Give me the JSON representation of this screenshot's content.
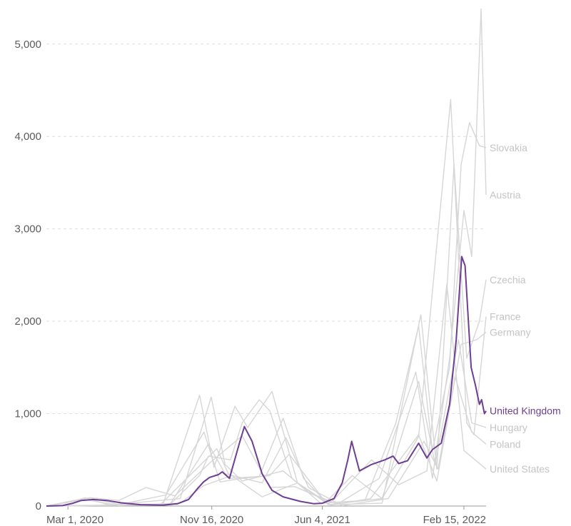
{
  "chart_data": {
    "type": "line",
    "title": "",
    "xlabel": "",
    "ylabel": "",
    "ylim": [
      0,
      5400
    ],
    "grid": true,
    "x_ticks": [
      "Mar 1, 2020",
      "Nov 16, 2020",
      "Jun 4, 2021",
      "Feb 15, 2022"
    ],
    "y_ticks": [
      0,
      1000,
      2000,
      3000,
      4000,
      5000
    ],
    "y_tick_labels": [
      "0",
      "1,000",
      "2,000",
      "3,000",
      "4,000",
      "5,000"
    ],
    "xlim": [
      "2020-01-22",
      "2022-03-27"
    ],
    "colors": {
      "highlight": "#6d3e91",
      "background": "#d6d6d6",
      "background_label": "#c4c4c4",
      "tick_text": "#5b5b5b",
      "grid": "#dddddd"
    },
    "series": [
      {
        "name": "United Kingdom",
        "highlight": true,
        "points": [
          [
            "2020-01-22",
            0
          ],
          [
            "2020-02-20",
            5
          ],
          [
            "2020-03-10",
            30
          ],
          [
            "2020-03-25",
            60
          ],
          [
            "2020-04-15",
            70
          ],
          [
            "2020-05-10",
            60
          ],
          [
            "2020-06-05",
            35
          ],
          [
            "2020-07-10",
            15
          ],
          [
            "2020-08-20",
            10
          ],
          [
            "2020-09-15",
            25
          ],
          [
            "2020-10-05",
            70
          ],
          [
            "2020-10-20",
            180
          ],
          [
            "2020-11-01",
            260
          ],
          [
            "2020-11-12",
            310
          ],
          [
            "2020-11-28",
            340
          ],
          [
            "2020-12-05",
            370
          ],
          [
            "2020-12-18",
            300
          ],
          [
            "2021-01-05",
            680
          ],
          [
            "2021-01-14",
            860
          ],
          [
            "2021-01-28",
            700
          ],
          [
            "2021-02-15",
            350
          ],
          [
            "2021-03-05",
            170
          ],
          [
            "2021-03-25",
            100
          ],
          [
            "2021-04-25",
            50
          ],
          [
            "2021-05-20",
            25
          ],
          [
            "2021-06-04",
            30
          ],
          [
            "2021-06-25",
            80
          ],
          [
            "2021-07-10",
            250
          ],
          [
            "2021-07-20",
            500
          ],
          [
            "2021-07-27",
            700
          ],
          [
            "2021-08-10",
            380
          ],
          [
            "2021-09-01",
            450
          ],
          [
            "2021-09-25",
            500
          ],
          [
            "2021-10-10",
            540
          ],
          [
            "2021-10-20",
            460
          ],
          [
            "2021-11-05",
            490
          ],
          [
            "2021-11-25",
            680
          ],
          [
            "2021-12-10",
            520
          ],
          [
            "2021-12-20",
            610
          ],
          [
            "2022-01-05",
            680
          ],
          [
            "2022-01-20",
            1100
          ],
          [
            "2022-02-01",
            1800
          ],
          [
            "2022-02-11",
            2700
          ],
          [
            "2022-02-17",
            2600
          ],
          [
            "2022-02-28",
            1500
          ],
          [
            "2022-03-08",
            1300
          ],
          [
            "2022-03-15",
            1100
          ],
          [
            "2022-03-19",
            1150
          ],
          [
            "2022-03-24",
            1000
          ],
          [
            "2022-03-27",
            1030
          ]
        ]
      },
      {
        "name": "Slovakia",
        "points": [
          [
            "2020-01-22",
            0
          ],
          [
            "2020-09-01",
            15
          ],
          [
            "2020-10-25",
            330
          ],
          [
            "2020-11-10",
            540
          ],
          [
            "2020-12-20",
            500
          ],
          [
            "2021-01-10",
            900
          ],
          [
            "2021-02-10",
            1150
          ],
          [
            "2021-03-01",
            1030
          ],
          [
            "2021-04-10",
            300
          ],
          [
            "2021-06-01",
            30
          ],
          [
            "2021-08-20",
            60
          ],
          [
            "2021-10-15",
            900
          ],
          [
            "2021-11-25",
            1950
          ],
          [
            "2021-12-20",
            600
          ],
          [
            "2022-01-20",
            1500
          ],
          [
            "2022-02-10",
            3700
          ],
          [
            "2022-02-25",
            4150
          ],
          [
            "2022-03-15",
            3900
          ],
          [
            "2022-03-27",
            3880
          ]
        ]
      },
      {
        "name": "Austria",
        "points": [
          [
            "2020-01-22",
            0
          ],
          [
            "2020-03-10",
            50
          ],
          [
            "2020-04-01",
            90
          ],
          [
            "2020-05-15",
            10
          ],
          [
            "2020-09-20",
            80
          ],
          [
            "2020-11-15",
            1180
          ],
          [
            "2020-12-10",
            450
          ],
          [
            "2021-01-10",
            270
          ],
          [
            "2021-03-25",
            380
          ],
          [
            "2021-05-10",
            150
          ],
          [
            "2021-07-01",
            20
          ],
          [
            "2021-09-15",
            300
          ],
          [
            "2021-11-20",
            1450
          ],
          [
            "2021-12-20",
            300
          ],
          [
            "2022-01-20",
            1600
          ],
          [
            "2022-02-15",
            3200
          ],
          [
            "2022-03-01",
            2700
          ],
          [
            "2022-03-18",
            5380
          ],
          [
            "2022-03-27",
            3370
          ]
        ]
      },
      {
        "name": "Czechia",
        "points": [
          [
            "2020-01-22",
            0
          ],
          [
            "2020-08-20",
            20
          ],
          [
            "2020-10-25",
            1200
          ],
          [
            "2020-11-20",
            420
          ],
          [
            "2020-12-28",
            1080
          ],
          [
            "2021-01-20",
            850
          ],
          [
            "2021-03-05",
            1240
          ],
          [
            "2021-04-20",
            250
          ],
          [
            "2021-06-15",
            15
          ],
          [
            "2021-09-20",
            30
          ],
          [
            "2021-11-29",
            2070
          ],
          [
            "2021-12-28",
            400
          ],
          [
            "2022-01-28",
            3700
          ],
          [
            "2022-02-20",
            1600
          ],
          [
            "2022-03-15",
            2000
          ],
          [
            "2022-03-27",
            2450
          ]
        ]
      },
      {
        "name": "France",
        "points": [
          [
            "2020-01-22",
            0
          ],
          [
            "2020-03-20",
            70
          ],
          [
            "2020-04-10",
            90
          ],
          [
            "2020-06-01",
            15
          ],
          [
            "2020-08-25",
            120
          ],
          [
            "2020-11-02",
            800
          ],
          [
            "2020-12-01",
            260
          ],
          [
            "2021-01-10",
            300
          ],
          [
            "2021-03-01",
            330
          ],
          [
            "2021-04-05",
            560
          ],
          [
            "2021-06-10",
            40
          ],
          [
            "2021-07-28",
            330
          ],
          [
            "2021-09-20",
            80
          ],
          [
            "2021-11-25",
            750
          ],
          [
            "2022-01-22",
            4400
          ],
          [
            "2022-02-20",
            900
          ],
          [
            "2022-03-05",
            770
          ],
          [
            "2022-03-27",
            2050
          ]
        ]
      },
      {
        "name": "Germany",
        "points": [
          [
            "2020-01-22",
            0
          ],
          [
            "2020-04-01",
            70
          ],
          [
            "2020-06-01",
            5
          ],
          [
            "2020-09-20",
            30
          ],
          [
            "2020-11-01",
            220
          ],
          [
            "2020-12-22",
            330
          ],
          [
            "2021-02-15",
            100
          ],
          [
            "2021-04-20",
            250
          ],
          [
            "2021-06-20",
            10
          ],
          [
            "2021-08-30",
            80
          ],
          [
            "2021-11-25",
            770
          ],
          [
            "2021-12-28",
            270
          ],
          [
            "2022-02-10",
            1750
          ],
          [
            "2022-03-10",
            1800
          ],
          [
            "2022-03-27",
            1880
          ]
        ]
      },
      {
        "name": "Hungary",
        "points": [
          [
            "2020-01-22",
            0
          ],
          [
            "2020-08-15",
            15
          ],
          [
            "2020-11-25",
            620
          ],
          [
            "2020-12-20",
            300
          ],
          [
            "2021-02-10",
            320
          ],
          [
            "2021-03-25",
            950
          ],
          [
            "2021-05-01",
            300
          ],
          [
            "2021-06-15",
            15
          ],
          [
            "2021-09-20",
            80
          ],
          [
            "2021-11-25",
            1350
          ],
          [
            "2021-12-25",
            450
          ],
          [
            "2022-02-05",
            1800
          ],
          [
            "2022-03-01",
            900
          ],
          [
            "2022-03-27",
            850
          ]
        ]
      },
      {
        "name": "Poland",
        "points": [
          [
            "2020-01-22",
            0
          ],
          [
            "2020-09-01",
            15
          ],
          [
            "2020-11-10",
            670
          ],
          [
            "2020-12-10",
            350
          ],
          [
            "2021-02-15",
            250
          ],
          [
            "2021-03-30",
            740
          ],
          [
            "2021-05-10",
            200
          ],
          [
            "2021-07-10",
            5
          ],
          [
            "2021-10-01",
            80
          ],
          [
            "2021-12-05",
            700
          ],
          [
            "2021-12-30",
            400
          ],
          [
            "2022-01-30",
            1400
          ],
          [
            "2022-03-01",
            800
          ],
          [
            "2022-03-27",
            670
          ]
        ]
      },
      {
        "name": "United States",
        "points": [
          [
            "2020-01-22",
            0
          ],
          [
            "2020-04-10",
            90
          ],
          [
            "2020-06-01",
            60
          ],
          [
            "2020-07-20",
            200
          ],
          [
            "2020-09-10",
            110
          ],
          [
            "2020-11-15",
            480
          ],
          [
            "2021-01-10",
            760
          ],
          [
            "2021-03-01",
            200
          ],
          [
            "2021-04-15",
            210
          ],
          [
            "2021-06-20",
            40
          ],
          [
            "2021-09-01",
            500
          ],
          [
            "2021-10-20",
            230
          ],
          [
            "2021-12-10",
            380
          ],
          [
            "2022-01-15",
            2400
          ],
          [
            "2022-02-15",
            600
          ],
          [
            "2022-03-27",
            400
          ]
        ]
      }
    ]
  }
}
